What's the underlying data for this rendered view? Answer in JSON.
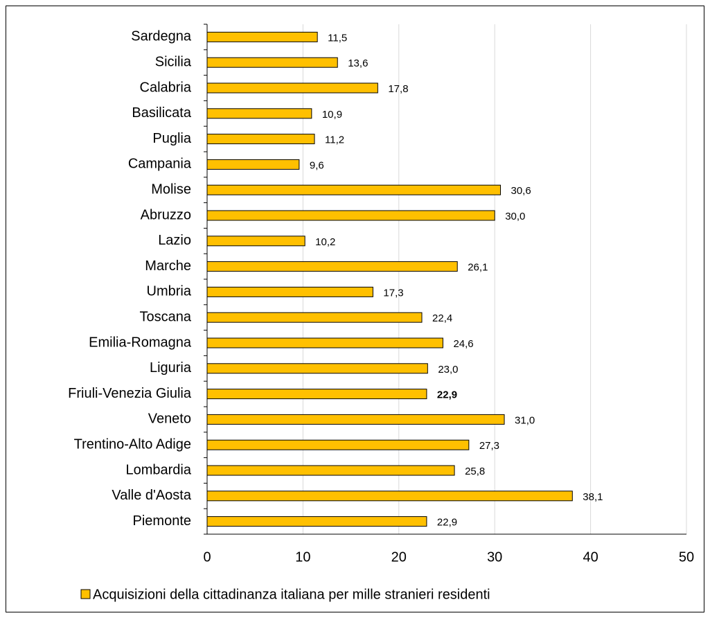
{
  "chart_data": {
    "type": "barh",
    "categories": [
      "Sardegna",
      "Sicilia",
      "Calabria",
      "Basilicata",
      "Puglia",
      "Campania",
      "Molise",
      "Abruzzo",
      "Lazio",
      "Marche",
      "Umbria",
      "Toscana",
      "Emilia-Romagna",
      "Liguria",
      "Friuli-Venezia Giulia",
      "Veneto",
      "Trentino-Alto Adige",
      "Lombardia",
      "Valle d'Aosta",
      "Piemonte"
    ],
    "series": [
      {
        "name": "Acquisizioni della cittadinanza italiana per mille stranieri residenti",
        "color": "#ffc000",
        "values": [
          11.5,
          13.6,
          17.8,
          10.9,
          11.2,
          9.6,
          30.6,
          30.0,
          10.2,
          26.1,
          17.3,
          22.4,
          24.6,
          23.0,
          22.9,
          31.0,
          27.3,
          25.8,
          38.1,
          22.9
        ],
        "value_labels": [
          "11,5",
          "13,6",
          "17,8",
          "10,9",
          "11,2",
          "9,6",
          "30,6",
          "30,0",
          "10,2",
          "26,1",
          "17,3",
          "22,4",
          "24,6",
          "23,0",
          "22,9",
          "31,0",
          "27,3",
          "25,8",
          "38,1",
          "22,9"
        ]
      }
    ],
    "highlight": {
      "index": 14,
      "color": "#ff0000"
    },
    "xlim": [
      0,
      50
    ],
    "xticks": [
      0,
      10,
      20,
      30,
      40,
      50
    ],
    "grid": true,
    "legend": "bottom"
  }
}
